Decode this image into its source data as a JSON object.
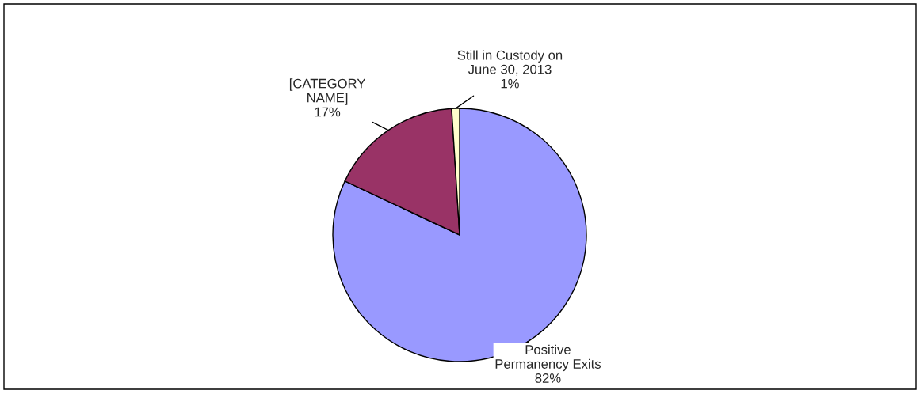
{
  "chart_data": {
    "type": "pie",
    "categories": [
      "Positive\nPermanency Exits",
      "[CATEGORY\nNAME]",
      "Still in Custody on\nJune 30, 2013"
    ],
    "values": [
      82,
      17,
      1
    ],
    "colors": [
      "#9999ff",
      "#993366",
      "#ffffcc"
    ],
    "value_labels": [
      "82%",
      "17%",
      "1%"
    ],
    "legend": false
  }
}
